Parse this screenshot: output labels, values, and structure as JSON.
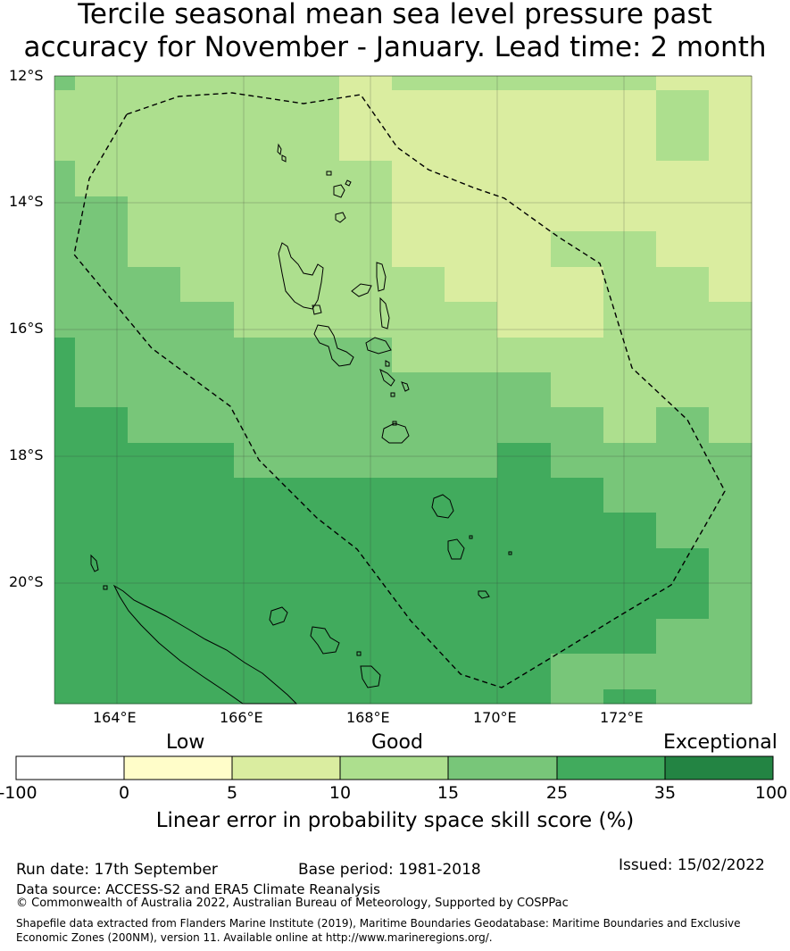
{
  "title": {
    "line1": "Tercile seasonal mean sea level pressure past",
    "line2": "accuracy for November - January. Lead time: 2 month"
  },
  "map": {
    "lat_labels": [
      "12°S",
      "14°S",
      "16°S",
      "18°S",
      "20°S"
    ],
    "lon_labels": [
      "164°E",
      "166°E",
      "168°E",
      "170°E",
      "172°E"
    ],
    "lon_range": [
      163.0,
      173.0
    ],
    "lat_range": [
      -21.9,
      -12.0
    ],
    "grid": true,
    "boundary_style": "dashed",
    "skill_grid_description": "Gridded skill score shading; higher skill in south and west (25–35%), lower skill in north-east (5–10%)"
  },
  "colorbar": {
    "categories": [
      "Low",
      "Good",
      "Exceptional"
    ],
    "ticks": [
      "-100",
      "0",
      "5",
      "10",
      "15",
      "25",
      "35",
      "100"
    ],
    "colors": [
      "#ffffff",
      "#fffdc9",
      "#daeda0",
      "#addf8e",
      "#78c679",
      "#41ab5d",
      "#238443"
    ],
    "label": "Linear error in probability space skill score (%)"
  },
  "footer": {
    "run_date": "Run date: 17th September",
    "base_period": "Base period: 1981-2018",
    "issued": "Issued: 15/02/2022",
    "data_source": "Data source: ACCESS-S2 and ERA5 Climate Reanalysis",
    "copyright": "© Commonwealth of Australia 2022, Australian Bureau of Meteorology, Supported by COSPPac",
    "shapefile_line1": "Shapefile data extracted from Flanders Marine Institute (2019), Maritime Boundaries Geodatabase: Maritime Boundaries and Exclusive",
    "shapefile_line2": "Economic Zones (200NM), version 11. Available online at http://www.marineregions.org/."
  }
}
